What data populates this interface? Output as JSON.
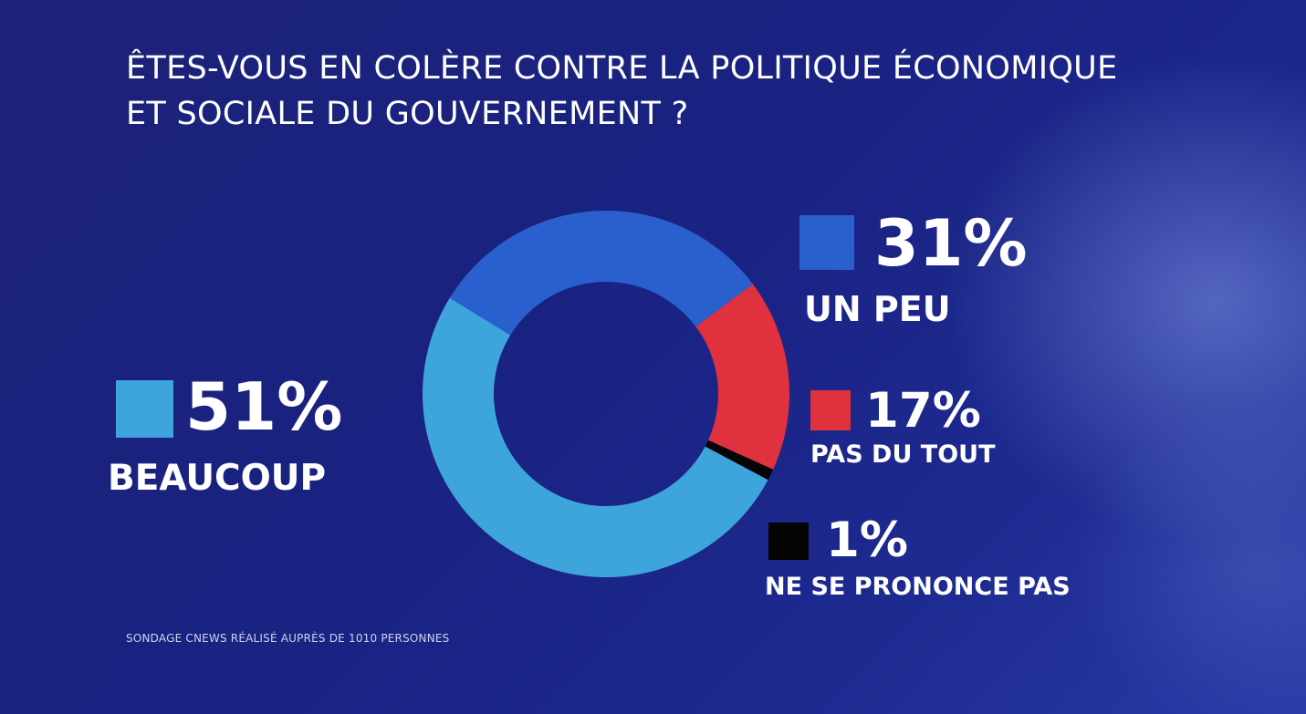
{
  "title_line1": "ÊTES-VOUS EN COLÈRE CONTRE LA POLITIQUE ÉCONOMIQUE",
  "title_line2": "ET SOCIALE DU GOUVERNEMENT ?",
  "footnote": "SONDAGE CNEWS RÉALISÉ AUPRÈS DE 1010 PERSONNES",
  "chart_data": {
    "type": "pie",
    "style": "donut",
    "title": "ÊTES-VOUS EN COLÈRE CONTRE LA POLITIQUE ÉCONOMIQUE ET SOCIALE DU GOUVERNEMENT ?",
    "categories": [
      "UN PEU",
      "PAS DU TOUT",
      "NE SE PRONONCE PAS",
      "BEAUCOUP"
    ],
    "values": [
      31,
      17,
      1,
      51
    ],
    "labels": [
      "31%",
      "17%",
      "1%",
      "51%"
    ],
    "colors": [
      "#2a5fce",
      "#e0313f",
      "#050505",
      "#3ea5dc"
    ]
  }
}
